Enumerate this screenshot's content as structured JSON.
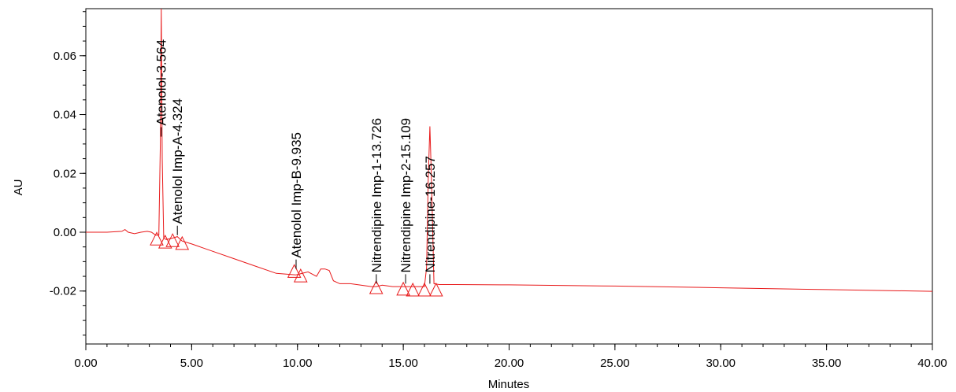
{
  "chart_data": {
    "type": "line",
    "title": "",
    "xlabel": "Minutes",
    "ylabel": "AU",
    "xlim": [
      0,
      40
    ],
    "ylim": [
      -0.038,
      0.076
    ],
    "x_ticks": [
      0,
      5,
      10,
      15,
      20,
      25,
      30,
      35,
      40
    ],
    "x_tick_labels": [
      "0.00",
      "5.00",
      "10.00",
      "15.00",
      "20.00",
      "25.00",
      "30.00",
      "35.00",
      "40.00"
    ],
    "y_ticks": [
      -0.02,
      0.0,
      0.02,
      0.04,
      0.06
    ],
    "y_tick_labels": [
      "-0.02",
      "0.00",
      "0.02",
      "0.04",
      "0.06"
    ],
    "grid": false,
    "colors": {
      "trace": "#e8191a",
      "axis": "#000000"
    },
    "series": [
      {
        "x": [
          0,
          1.0,
          1.7,
          1.85,
          2.0,
          2.3,
          2.6,
          2.9,
          3.1,
          3.3,
          3.45,
          3.52,
          3.564,
          3.61,
          3.68,
          3.8,
          4.1,
          4.324,
          4.55,
          5.0,
          6.0,
          7.0,
          8.0,
          9.0,
          9.935,
          10.5,
          10.9,
          11.1,
          11.3,
          11.5,
          11.7,
          12.0,
          12.5,
          13.0,
          13.5,
          13.726,
          14.0,
          14.5,
          15.0,
          15.109,
          15.4,
          15.8,
          16.0,
          16.1,
          16.18,
          16.257,
          16.33,
          16.45,
          16.7,
          17.5,
          20,
          25,
          30,
          35,
          40
        ],
        "y": [
          0.0,
          0.0,
          0.0003,
          0.0009,
          0.0,
          -0.0005,
          0.0,
          0.0003,
          0.0,
          -0.001,
          -0.001,
          0.03,
          0.076,
          0.025,
          -0.002,
          -0.0025,
          -0.002,
          -0.0015,
          -0.003,
          -0.004,
          -0.0065,
          -0.009,
          -0.0115,
          -0.014,
          -0.0145,
          -0.0135,
          -0.015,
          -0.0125,
          -0.0125,
          -0.013,
          -0.0165,
          -0.0175,
          -0.0175,
          -0.018,
          -0.0185,
          -0.0185,
          -0.018,
          -0.0185,
          -0.0185,
          -0.0185,
          -0.0185,
          -0.0185,
          -0.0185,
          -0.012,
          0.018,
          0.036,
          0.018,
          -0.0175,
          -0.0178,
          -0.0178,
          -0.0179,
          -0.0183,
          -0.0189,
          -0.0195,
          -0.0201
        ]
      }
    ],
    "baseline_markers": [
      {
        "x": 3.35,
        "y": -0.0025
      },
      {
        "x": 3.75,
        "y": -0.0035
      },
      {
        "x": 4.1,
        "y": -0.003
      },
      {
        "x": 4.55,
        "y": -0.004
      },
      {
        "x": 9.85,
        "y": -0.0135
      },
      {
        "x": 10.15,
        "y": -0.015
      },
      {
        "x": 13.72,
        "y": -0.019
      },
      {
        "x": 15.0,
        "y": -0.0195
      },
      {
        "x": 15.45,
        "y": -0.0198
      },
      {
        "x": 16.0,
        "y": -0.0198
      },
      {
        "x": 16.55,
        "y": -0.0198
      }
    ],
    "annotations": [
      {
        "text": "Atenolol-3.564",
        "x": 3.564,
        "y": 0.0325
      },
      {
        "text": "Atenolol Imp-A-4.324",
        "x": 4.324,
        "y": -0.001
      },
      {
        "text": "Atenolol Imp-B-9.935",
        "x": 9.935,
        "y": -0.0125
      },
      {
        "text": "Nitrendipine Imp-1-13.726",
        "x": 13.726,
        "y": -0.0175
      },
      {
        "text": "Nitrendipine Imp-2-15.109",
        "x": 15.109,
        "y": -0.0175
      },
      {
        "text": "Nitrendipine-16.257",
        "x": 16.257,
        "y": -0.0175
      }
    ]
  }
}
